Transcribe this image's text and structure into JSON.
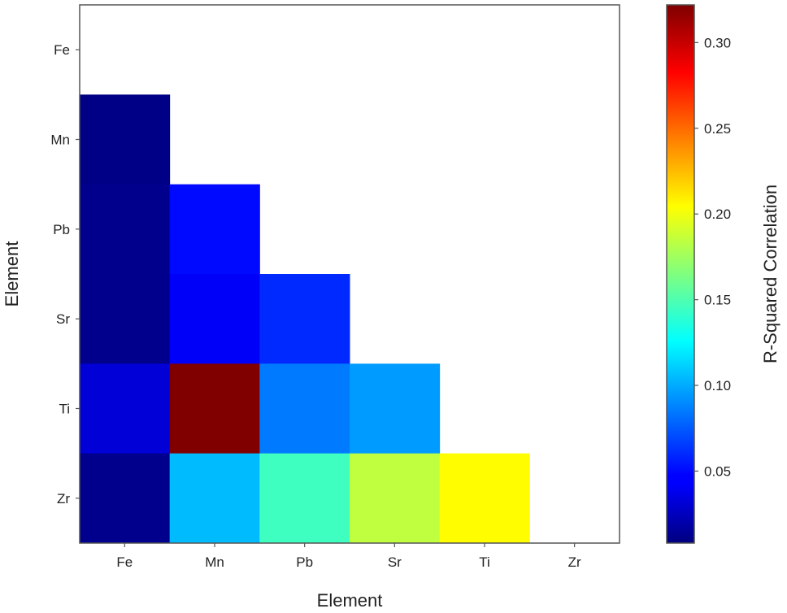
{
  "chart_data": {
    "type": "heatmap",
    "xlabel": "Element",
    "ylabel": "Element",
    "x_categories": [
      "Fe",
      "Mn",
      "Pb",
      "Sr",
      "Ti",
      "Zr"
    ],
    "y_categories": [
      "Fe",
      "Mn",
      "Pb",
      "Sr",
      "Ti",
      "Zr"
    ],
    "values": [
      [
        null,
        null,
        null,
        null,
        null,
        null
      ],
      [
        0.01,
        null,
        null,
        null,
        null,
        null
      ],
      [
        0.012,
        0.05,
        null,
        null,
        null,
        null
      ],
      [
        0.012,
        0.045,
        0.06,
        null,
        null,
        null
      ],
      [
        0.035,
        0.322,
        0.085,
        0.095,
        null,
        null
      ],
      [
        0.012,
        0.105,
        0.145,
        0.185,
        0.205,
        null
      ]
    ],
    "colormap": "jet",
    "colorbar": {
      "label": "R-Squared Correlation",
      "vmin": 0.008,
      "vmax": 0.322,
      "ticks": [
        0.05,
        0.1,
        0.15,
        0.2,
        0.25,
        0.3
      ],
      "tick_labels": [
        "0.05",
        "0.10",
        "0.15",
        "0.20",
        "0.25",
        "0.30"
      ]
    },
    "grid": false
  }
}
